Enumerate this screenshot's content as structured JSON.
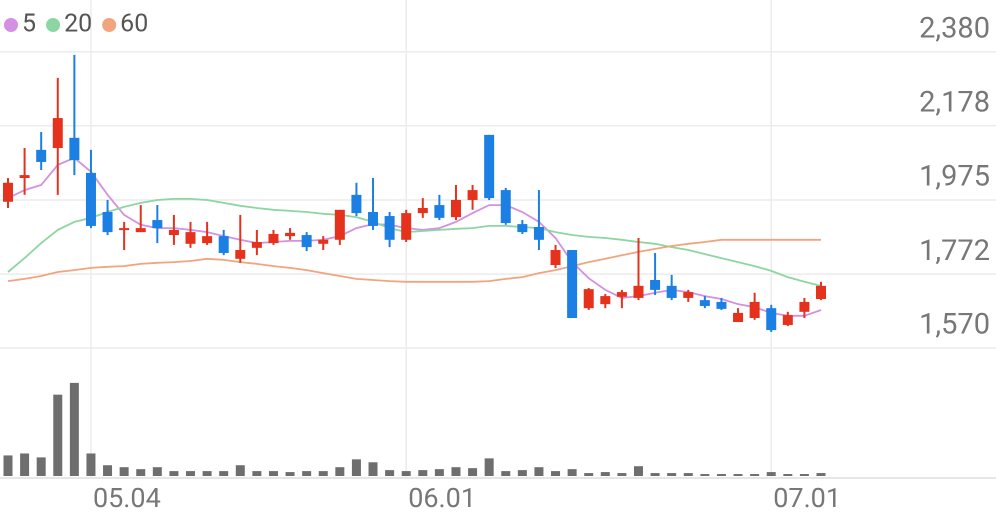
{
  "chart_data": {
    "type": "candlestick",
    "categories": [
      null,
      null,
      null,
      null,
      null,
      "05.04",
      null,
      null,
      null,
      null,
      null,
      null,
      null,
      null,
      null,
      null,
      null,
      null,
      null,
      null,
      null,
      null,
      null,
      null,
      "06.01",
      null,
      null,
      null,
      null,
      null,
      null,
      null,
      null,
      null,
      null,
      null,
      null,
      null,
      null,
      null,
      null,
      null,
      null,
      null,
      null,
      null,
      "07.01",
      null,
      null,
      null
    ],
    "open": [
      1970,
      2035,
      2112,
      2117,
      2145,
      2049,
      1942,
      1893,
      1887,
      1920,
      1879,
      1855,
      1857,
      1876,
      1814,
      1844,
      1857,
      1876,
      1879,
      1855,
      1866,
      1989,
      1942,
      1931,
      1866,
      1939,
      1961,
      1928,
      1975,
      2153,
      2002,
      1909,
      1901,
      1797,
      1838,
      1679,
      1690,
      1710,
      1707,
      1756,
      1740,
      1707,
      1701,
      1696,
      1641,
      1652,
      1679,
      1633,
      1669,
      1704
    ],
    "high": [
      2035,
      2117,
      2161,
      2309,
      2372,
      2112,
      1975,
      1915,
      1961,
      1961,
      1934,
      1915,
      1915,
      1893,
      1934,
      1893,
      1893,
      1898,
      1887,
      1876,
      1948,
      2022,
      2035,
      1942,
      1948,
      1980,
      1989,
      2016,
      2016,
      2153,
      2008,
      1920,
      2002,
      1852,
      1838,
      1734,
      1718,
      1729,
      1871,
      1830,
      1770,
      1729,
      1712,
      1707,
      1679,
      1721,
      1688,
      1669,
      1707,
      1751
    ],
    "low": [
      1953,
      1989,
      2057,
      1989,
      2043,
      1898,
      1879,
      1838,
      1887,
      1857,
      1852,
      1844,
      1852,
      1824,
      1803,
      1824,
      1852,
      1866,
      1835,
      1838,
      1852,
      1931,
      1893,
      1846,
      1860,
      1926,
      1920,
      1920,
      1948,
      1975,
      1907,
      1882,
      1838,
      1789,
      1652,
      1674,
      1679,
      1679,
      1701,
      1715,
      1701,
      1696,
      1679,
      1674,
      1641,
      1647,
      1614,
      1630,
      1652,
      1701
    ],
    "close": [
      2022,
      2043,
      2079,
      2199,
      2084,
      1904,
      1887,
      1898,
      1898,
      1898,
      1893,
      1887,
      1876,
      1830,
      1838,
      1860,
      1882,
      1885,
      1846,
      1866,
      1948,
      1939,
      1904,
      1866,
      1939,
      1953,
      1926,
      1975,
      2002,
      1980,
      1912,
      1887,
      1866,
      1838,
      1652,
      1731,
      1712,
      1723,
      1740,
      1729,
      1707,
      1723,
      1685,
      1677,
      1666,
      1696,
      1619,
      1660,
      1696,
      1740
    ],
    "up_color": "#e5321c",
    "down_color": "#1b7fe3",
    "ylim": [
      1570,
      2522
    ],
    "yticks": [
      {
        "value": 2380,
        "label": "2,380"
      },
      {
        "value": 2178,
        "label": "2,178"
      },
      {
        "value": 1975,
        "label": "1,975"
      },
      {
        "value": 1772,
        "label": "1,772"
      },
      {
        "value": 1570,
        "label": "1,570"
      }
    ],
    "grid": true,
    "moving_averages": [
      {
        "name": "5",
        "color": "#d490e2",
        "values": [
          1980,
          2002,
          2016,
          2071,
          2090,
          2052,
          1989,
          1934,
          1907,
          1898,
          1898,
          1893,
          1887,
          1876,
          1866,
          1857,
          1860,
          1863,
          1863,
          1866,
          1876,
          1898,
          1909,
          1907,
          1898,
          1893,
          1898,
          1915,
          1939,
          1961,
          1961,
          1942,
          1915,
          1871,
          1805,
          1761,
          1729,
          1707,
          1712,
          1721,
          1729,
          1723,
          1712,
          1704,
          1690,
          1682,
          1666,
          1658,
          1658,
          1674
        ]
      },
      {
        "name": "20",
        "color": "#8dd6a2",
        "values": [
          1778,
          1816,
          1857,
          1893,
          1915,
          1926,
          1942,
          1956,
          1967,
          1975,
          1978,
          1978,
          1975,
          1967,
          1959,
          1953,
          1948,
          1945,
          1942,
          1937,
          1934,
          1928,
          1915,
          1898,
          1887,
          1890,
          1893,
          1896,
          1898,
          1904,
          1904,
          1901,
          1898,
          1887,
          1879,
          1874,
          1871,
          1866,
          1860,
          1855,
          1846,
          1838,
          1827,
          1816,
          1805,
          1794,
          1781,
          1764,
          1751,
          1740
        ]
      },
      {
        "name": "60",
        "color": "#f2a47e",
        "values": [
          1753,
          1759,
          1767,
          1778,
          1783,
          1789,
          1792,
          1794,
          1800,
          1803,
          1805,
          1808,
          1814,
          1811,
          1805,
          1800,
          1794,
          1789,
          1783,
          1775,
          1767,
          1759,
          1756,
          1753,
          1751,
          1751,
          1751,
          1751,
          1751,
          1753,
          1759,
          1764,
          1775,
          1783,
          1794,
          1805,
          1814,
          1824,
          1833,
          1841,
          1849,
          1855,
          1860,
          1866,
          1866,
          1866,
          1866,
          1866,
          1866,
          1866
        ]
      }
    ],
    "volume": {
      "color": "#6e6e6e",
      "ylim": [
        0,
        100
      ],
      "values": [
        21,
        23,
        19,
        83,
        95,
        23,
        11,
        9,
        7,
        9,
        5,
        5,
        5,
        5,
        11,
        5,
        5,
        4,
        5,
        5,
        9,
        17,
        14,
        6,
        5,
        6,
        7,
        9,
        8,
        18,
        5,
        6,
        9,
        5,
        7,
        3,
        4,
        3,
        10,
        3,
        3,
        3,
        2,
        2,
        2,
        2,
        4,
        2,
        2,
        3
      ]
    }
  }
}
